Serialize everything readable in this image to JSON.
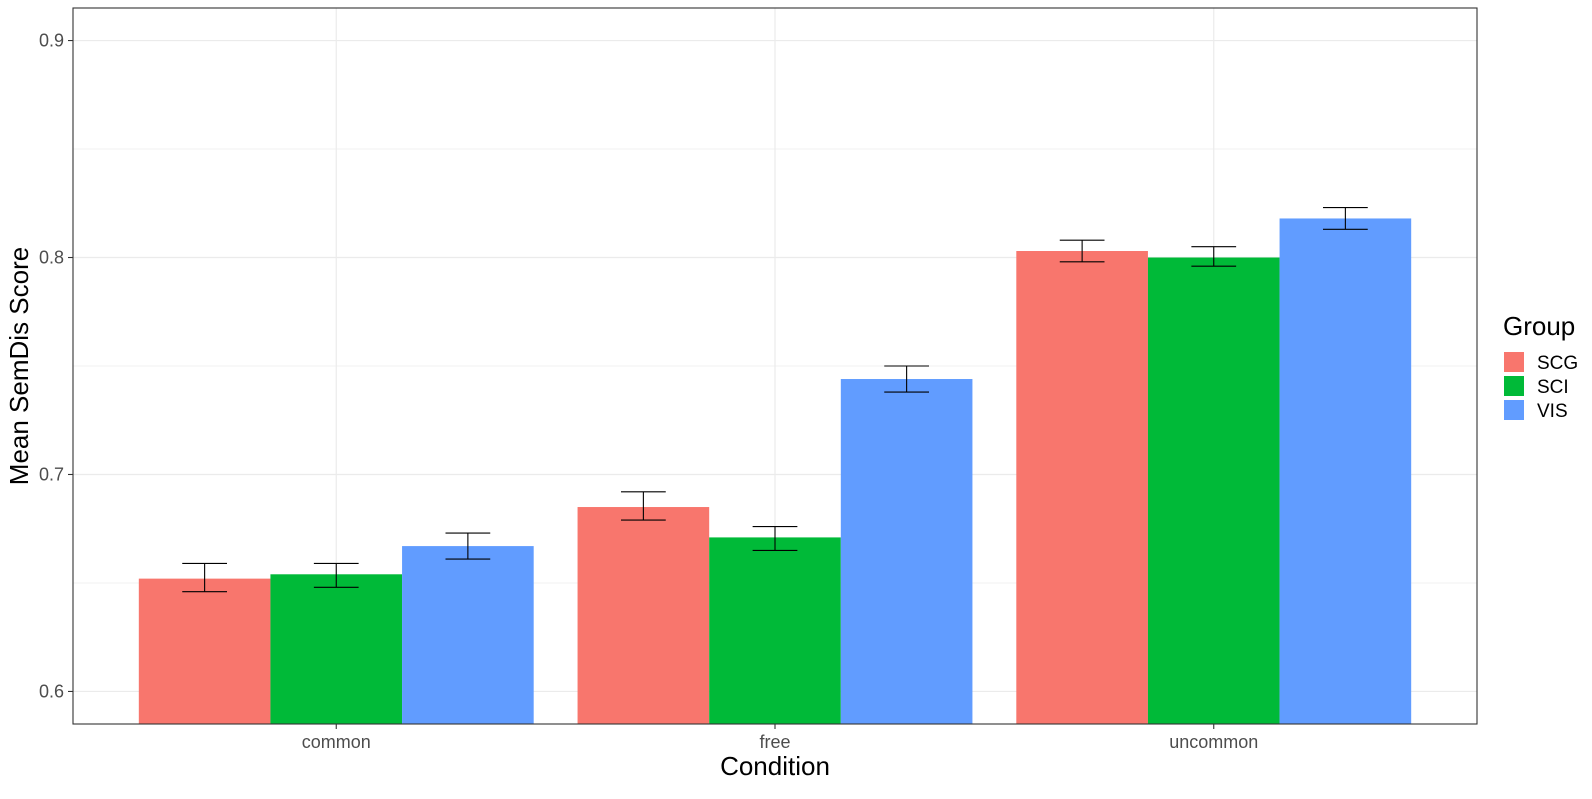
{
  "chart_data": {
    "type": "bar",
    "title": "",
    "xlabel": "Condition",
    "ylabel": "Mean SemDis Score",
    "categories": [
      "common",
      "free",
      "uncommon"
    ],
    "ylim": [
      0.585,
      0.915
    ],
    "yticks": [
      0.6,
      0.7,
      0.8,
      0.9
    ],
    "yticklabels": [
      "0.6",
      "0.7",
      "0.8",
      "0.9"
    ],
    "grid": true,
    "legend": {
      "title": "Group",
      "placement": "right"
    },
    "series": [
      {
        "name": "SCG",
        "color": "#F8766D",
        "values": [
          0.652,
          0.685,
          0.803
        ],
        "error_low": [
          0.646,
          0.679,
          0.798
        ],
        "error_high": [
          0.659,
          0.692,
          0.808
        ]
      },
      {
        "name": "SCI",
        "color": "#00BA38",
        "values": [
          0.654,
          0.671,
          0.8
        ],
        "error_low": [
          0.648,
          0.665,
          0.796
        ],
        "error_high": [
          0.659,
          0.676,
          0.805
        ]
      },
      {
        "name": "VIS",
        "color": "#619CFF",
        "values": [
          0.667,
          0.744,
          0.818
        ],
        "error_low": [
          0.661,
          0.738,
          0.813
        ],
        "error_high": [
          0.673,
          0.75,
          0.823
        ]
      }
    ]
  }
}
